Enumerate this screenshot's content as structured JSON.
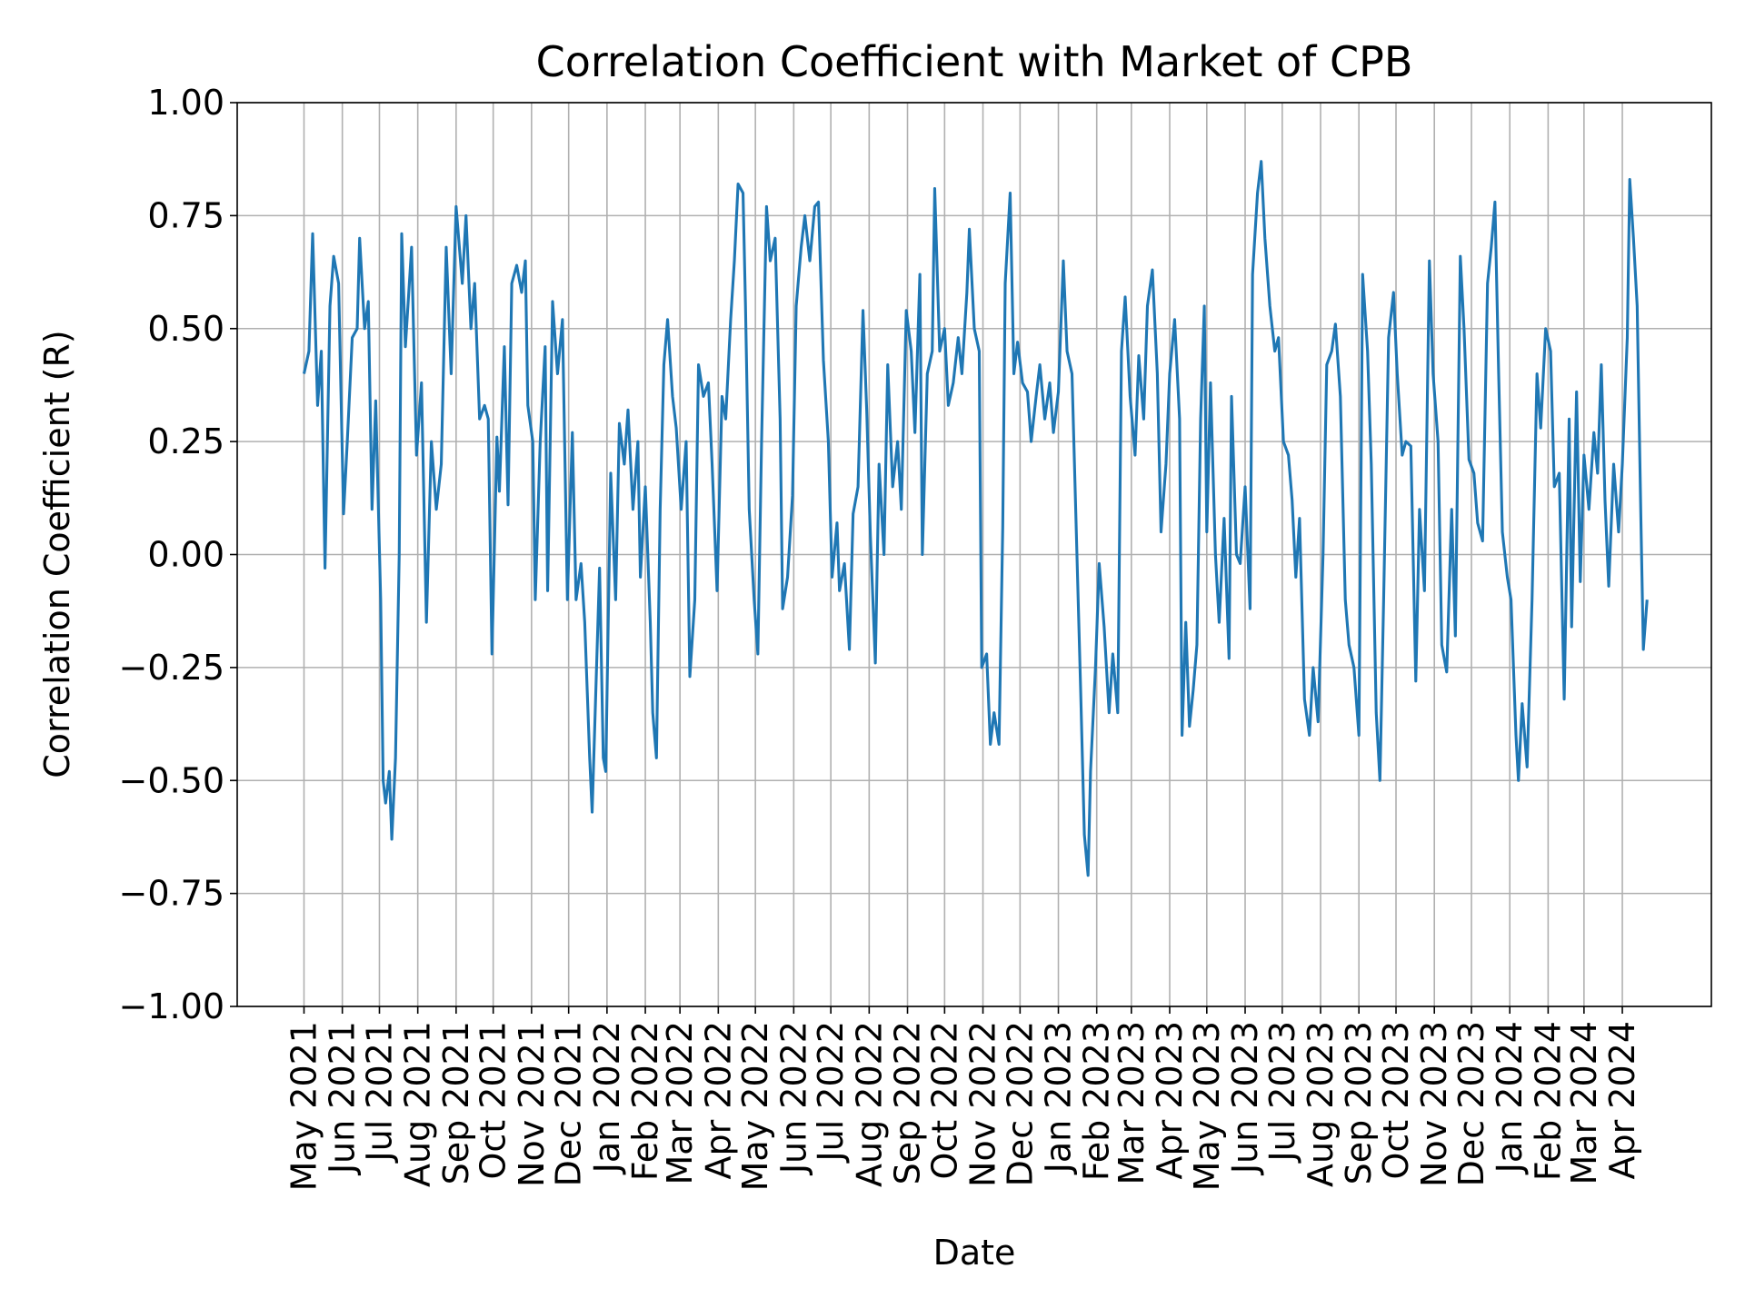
{
  "chart_data": {
    "type": "line",
    "title": "Correlation Coefficient with Market of CPB",
    "xlabel": "Date",
    "ylabel": "Correlation Coefficient (R)",
    "color": "#1f77b4",
    "grid": true,
    "xlim": [
      "2021-03-08",
      "2024-06-12"
    ],
    "ylim": [
      -1,
      1
    ],
    "yticks": [
      {
        "value": -1,
        "label": "−1.00"
      },
      {
        "value": -0.75,
        "label": "−0.75"
      },
      {
        "value": -0.5,
        "label": "−0.50"
      },
      {
        "value": -0.25,
        "label": "−0.25"
      },
      {
        "value": 0,
        "label": "0.00"
      },
      0.25,
      {
        "value": 0.5,
        "label": "0.50"
      },
      0.75,
      {
        "value": 1,
        "label": "1.00"
      }
    ],
    "xticks": [
      {
        "value": "2021-05-01",
        "label": "May 2021"
      },
      {
        "value": "2021-06-01",
        "label": "Jun 2021"
      },
      {
        "value": "2021-07-01",
        "label": "Jul 2021"
      },
      {
        "value": "2021-08-01",
        "label": "Aug 2021"
      },
      {
        "value": "2021-09-01",
        "label": "Sep 2021"
      },
      {
        "value": "2021-10-01",
        "label": "Oct 2021"
      },
      {
        "value": "2021-11-01",
        "label": "Nov 2021"
      },
      {
        "value": "2021-12-01",
        "label": "Dec 2021"
      },
      {
        "value": "2022-01-01",
        "label": "Jan 2022"
      },
      {
        "value": "2022-02-01",
        "label": "Feb 2022"
      },
      {
        "value": "2022-03-01",
        "label": "Mar 2022"
      },
      {
        "value": "2022-04-01",
        "label": "Apr 2022"
      },
      {
        "value": "2022-05-01",
        "label": "May 2022"
      },
      {
        "value": "2022-06-01",
        "label": "Jun 2022"
      },
      {
        "value": "2022-07-01",
        "label": "Jul 2022"
      },
      {
        "value": "2022-08-01",
        "label": "Aug 2022"
      },
      {
        "value": "2022-09-01",
        "label": "Sep 2022"
      },
      {
        "value": "2022-10-01",
        "label": "Oct 2022"
      },
      {
        "value": "2022-11-01",
        "label": "Nov 2022"
      },
      {
        "value": "2022-12-01",
        "label": "Dec 2022"
      },
      {
        "value": "2023-01-01",
        "label": "Jan 2023"
      },
      {
        "value": "2023-02-01",
        "label": "Feb 2023"
      },
      {
        "value": "2023-03-01",
        "label": "Mar 2023"
      },
      {
        "value": "2023-04-01",
        "label": "Apr 2023"
      },
      {
        "value": "2023-05-01",
        "label": "May 2023"
      },
      {
        "value": "2023-06-01",
        "label": "Jun 2023"
      },
      {
        "value": "2023-07-01",
        "label": "Jul 2023"
      },
      {
        "value": "2023-08-01",
        "label": "Aug 2023"
      },
      {
        "value": "2023-09-01",
        "label": "Sep 2023"
      },
      {
        "value": "2023-10-01",
        "label": "Oct 2023"
      },
      {
        "value": "2023-11-01",
        "label": "Nov 2023"
      },
      {
        "value": "2023-12-01",
        "label": "Dec 2023"
      },
      {
        "value": "2024-01-01",
        "label": "Jan 2024"
      },
      {
        "value": "2024-02-01",
        "label": "Feb 2024"
      },
      {
        "value": "2024-03-01",
        "label": "Mar 2024"
      },
      {
        "value": "2024-04-01",
        "label": "Apr 2024"
      }
    ],
    "x": [
      "2021-05-01",
      "2021-05-05",
      "2021-05-08",
      "2021-05-12",
      "2021-05-15",
      "2021-05-18",
      "2021-05-22",
      "2021-05-25",
      "2021-05-29",
      "2021-06-02",
      "2021-06-05",
      "2021-06-09",
      "2021-06-13",
      "2021-06-15",
      "2021-06-19",
      "2021-06-22",
      "2021-06-25",
      "2021-06-28",
      "2021-07-02",
      "2021-07-04",
      "2021-07-06",
      "2021-07-09",
      "2021-07-11",
      "2021-07-14",
      "2021-07-17",
      "2021-07-19",
      "2021-07-22",
      "2021-07-27",
      "2021-07-31",
      "2021-08-04",
      "2021-08-08",
      "2021-08-12",
      "2021-08-16",
      "2021-08-20",
      "2021-08-24",
      "2021-08-28",
      "2021-09-01",
      "2021-09-06",
      "2021-09-09",
      "2021-09-13",
      "2021-09-16",
      "2021-09-20",
      "2021-09-24",
      "2021-09-27",
      "2021-09-30",
      "2021-10-04",
      "2021-10-06",
      "2021-10-10",
      "2021-10-13",
      "2021-10-16",
      "2021-10-20",
      "2021-10-24",
      "2021-10-27",
      "2021-10-29",
      "2021-11-02",
      "2021-11-04",
      "2021-11-08",
      "2021-11-12",
      "2021-11-14",
      "2021-11-18",
      "2021-11-22",
      "2021-11-26",
      "2021-11-30",
      "2021-12-04",
      "2021-12-07",
      "2021-12-11",
      "2021-12-14",
      "2021-12-18",
      "2021-12-20",
      "2021-12-23",
      "2021-12-26",
      "2021-12-29",
      "2021-12-31",
      "2022-01-04",
      "2022-01-08",
      "2022-01-11",
      "2022-01-15",
      "2022-01-18",
      "2022-01-22",
      "2022-01-26",
      "2022-01-28",
      "2022-02-01",
      "2022-02-05",
      "2022-02-07",
      "2022-02-10",
      "2022-02-13",
      "2022-02-16",
      "2022-02-19",
      "2022-02-23",
      "2022-02-26",
      "2022-03-02",
      "2022-03-06",
      "2022-03-09",
      "2022-03-13",
      "2022-03-16",
      "2022-03-20",
      "2022-03-24",
      "2022-03-27",
      "2022-03-31",
      "2022-04-04",
      "2022-04-07",
      "2022-04-11",
      "2022-04-14",
      "2022-04-17",
      "2022-04-21",
      "2022-04-23",
      "2022-04-26",
      "2022-04-30",
      "2022-05-03",
      "2022-05-06",
      "2022-05-10",
      "2022-05-13",
      "2022-05-17",
      "2022-05-21",
      "2022-05-23",
      "2022-05-27",
      "2022-05-31",
      "2022-06-03",
      "2022-06-07",
      "2022-06-10",
      "2022-06-14",
      "2022-06-18",
      "2022-06-21",
      "2022-06-25",
      "2022-06-29",
      "2022-07-02",
      "2022-07-06",
      "2022-07-08",
      "2022-07-12",
      "2022-07-16",
      "2022-07-19",
      "2022-07-23",
      "2022-07-27",
      "2022-07-30",
      "2022-08-02",
      "2022-08-06",
      "2022-08-09",
      "2022-08-13",
      "2022-08-16",
      "2022-08-20",
      "2022-08-24",
      "2022-08-27",
      "2022-08-31",
      "2022-09-04",
      "2022-09-07",
      "2022-09-11",
      "2022-09-13",
      "2022-09-17",
      "2022-09-21",
      "2022-09-23",
      "2022-09-27",
      "2022-10-01",
      "2022-10-04",
      "2022-10-08",
      "2022-10-12",
      "2022-10-15",
      "2022-10-19",
      "2022-10-21",
      "2022-10-25",
      "2022-10-29",
      "2022-10-31",
      "2022-11-04",
      "2022-11-07",
      "2022-11-10",
      "2022-11-14",
      "2022-11-17",
      "2022-11-19",
      "2022-11-23",
      "2022-11-26",
      "2022-11-29",
      "2022-12-03",
      "2022-12-07",
      "2022-12-10",
      "2022-12-14",
      "2022-12-17",
      "2022-12-21",
      "2022-12-25",
      "2022-12-28",
      "2023-01-01",
      "2023-01-05",
      "2023-01-08",
      "2023-01-12",
      "2023-01-15",
      "2023-01-19",
      "2023-01-22",
      "2023-01-25",
      "2023-01-27",
      "2023-01-31",
      "2023-02-03",
      "2023-02-07",
      "2023-02-11",
      "2023-02-14",
      "2023-02-18",
      "2023-02-21",
      "2023-02-24",
      "2023-02-28",
      "2023-03-04",
      "2023-03-07",
      "2023-03-11",
      "2023-03-14",
      "2023-03-18",
      "2023-03-22",
      "2023-03-25",
      "2023-03-29",
      "2023-04-01",
      "2023-04-05",
      "2023-04-09",
      "2023-04-11",
      "2023-04-14",
      "2023-04-17",
      "2023-04-20",
      "2023-04-23",
      "2023-04-26",
      "2023-04-29",
      "2023-05-01",
      "2023-05-04",
      "2023-05-08",
      "2023-05-11",
      "2023-05-15",
      "2023-05-19",
      "2023-05-21",
      "2023-05-25",
      "2023-05-28",
      "2023-06-01",
      "2023-06-05",
      "2023-06-07",
      "2023-06-11",
      "2023-06-14",
      "2023-06-17",
      "2023-06-21",
      "2023-06-25",
      "2023-06-28",
      "2023-07-02",
      "2023-07-06",
      "2023-07-09",
      "2023-07-12",
      "2023-07-15",
      "2023-07-19",
      "2023-07-23",
      "2023-07-26",
      "2023-07-30",
      "2023-08-03",
      "2023-08-06",
      "2023-08-10",
      "2023-08-13",
      "2023-08-17",
      "2023-08-21",
      "2023-08-24",
      "2023-08-28",
      "2023-09-01",
      "2023-09-04",
      "2023-09-08",
      "2023-09-11",
      "2023-09-15",
      "2023-09-18",
      "2023-09-21",
      "2023-09-25",
      "2023-09-29",
      "2023-10-02",
      "2023-10-06",
      "2023-10-09",
      "2023-10-13",
      "2023-10-17",
      "2023-10-20",
      "2023-10-24",
      "2023-10-28",
      "2023-10-31",
      "2023-11-04",
      "2023-11-07",
      "2023-11-11",
      "2023-11-15",
      "2023-11-18",
      "2023-11-22",
      "2023-11-25",
      "2023-11-29",
      "2023-12-03",
      "2023-12-06",
      "2023-12-10",
      "2023-12-14",
      "2023-12-17",
      "2023-12-20",
      "2023-12-23",
      "2023-12-26",
      "2023-12-30",
      "2024-01-02",
      "2024-01-06",
      "2024-01-08",
      "2024-01-11",
      "2024-01-15",
      "2024-01-19",
      "2024-01-23",
      "2024-01-26",
      "2024-01-30",
      "2024-02-03",
      "2024-02-06",
      "2024-02-10",
      "2024-02-14",
      "2024-02-18",
      "2024-02-20",
      "2024-02-24",
      "2024-02-27",
      "2024-03-01",
      "2024-03-05",
      "2024-03-09",
      "2024-03-12",
      "2024-03-15",
      "2024-03-18",
      "2024-03-21",
      "2024-03-25",
      "2024-03-29",
      "2024-04-01",
      "2024-04-05",
      "2024-04-07",
      "2024-04-10",
      "2024-04-13",
      "2024-04-16",
      "2024-04-18",
      "2024-04-21"
    ],
    "values": [
      0.4,
      0.45,
      0.71,
      0.33,
      0.45,
      -0.03,
      0.55,
      0.66,
      0.6,
      0.09,
      0.25,
      0.48,
      0.5,
      0.7,
      0.5,
      0.56,
      0.1,
      0.34,
      -0.1,
      -0.5,
      -0.55,
      -0.48,
      -0.63,
      -0.45,
      0.0,
      0.71,
      0.46,
      0.68,
      0.22,
      0.38,
      -0.15,
      0.25,
      0.1,
      0.2,
      0.68,
      0.4,
      0.77,
      0.6,
      0.75,
      0.5,
      0.6,
      0.3,
      0.33,
      0.3,
      -0.22,
      0.26,
      0.14,
      0.46,
      0.11,
      0.6,
      0.64,
      0.58,
      0.65,
      0.33,
      0.25,
      -0.1,
      0.25,
      0.46,
      -0.08,
      0.56,
      0.4,
      0.52,
      -0.1,
      0.27,
      -0.1,
      -0.02,
      -0.15,
      -0.45,
      -0.57,
      -0.3,
      -0.03,
      -0.45,
      -0.48,
      0.18,
      -0.1,
      0.29,
      0.2,
      0.32,
      0.1,
      0.25,
      -0.05,
      0.15,
      -0.15,
      -0.35,
      -0.45,
      0.1,
      0.42,
      0.52,
      0.35,
      0.28,
      0.1,
      0.25,
      -0.27,
      -0.1,
      0.42,
      0.35,
      0.38,
      0.2,
      -0.08,
      0.35,
      0.3,
      0.52,
      0.65,
      0.82,
      0.8,
      0.55,
      0.1,
      -0.1,
      -0.22,
      0.25,
      0.77,
      0.65,
      0.7,
      0.3,
      -0.12,
      -0.05,
      0.13,
      0.55,
      0.68,
      0.75,
      0.65,
      0.77,
      0.78,
      0.43,
      0.25,
      -0.05,
      0.07,
      -0.08,
      -0.02,
      -0.21,
      0.09,
      0.15,
      0.54,
      0.32,
      0.04,
      -0.24,
      0.2,
      0.0,
      0.42,
      0.15,
      0.25,
      0.1,
      0.54,
      0.45,
      0.27,
      0.62,
      0.0,
      0.4,
      0.45,
      0.81,
      0.45,
      0.5,
      0.33,
      0.38,
      0.48,
      0.4,
      0.58,
      0.72,
      0.5,
      0.45,
      -0.25,
      -0.22,
      -0.42,
      -0.35,
      -0.42,
      0.06,
      0.6,
      0.8,
      0.4,
      0.47,
      0.38,
      0.36,
      0.25,
      0.35,
      0.42,
      0.3,
      0.38,
      0.27,
      0.36,
      0.65,
      0.45,
      0.4,
      0.1,
      -0.3,
      -0.62,
      -0.71,
      -0.48,
      -0.25,
      -0.02,
      -0.16,
      -0.35,
      -0.22,
      -0.35,
      0.45,
      0.57,
      0.35,
      0.22,
      0.44,
      0.3,
      0.55,
      0.63,
      0.4,
      0.05,
      0.2,
      0.4,
      0.52,
      0.3,
      -0.4,
      -0.15,
      -0.38,
      -0.3,
      -0.2,
      0.3,
      0.55,
      0.05,
      0.38,
      0.0,
      -0.15,
      0.08,
      -0.23,
      0.35,
      0.0,
      -0.02,
      0.15,
      -0.12,
      0.62,
      0.8,
      0.87,
      0.7,
      0.55,
      0.45,
      0.48,
      0.25,
      0.22,
      0.12,
      -0.05,
      0.08,
      -0.32,
      -0.4,
      -0.25,
      -0.37,
      0.0,
      0.42,
      0.45,
      0.51,
      0.35,
      -0.1,
      -0.2,
      -0.25,
      -0.4,
      0.62,
      0.45,
      0.2,
      -0.35,
      -0.5,
      -0.1,
      0.48,
      0.58,
      0.4,
      0.22,
      0.25,
      0.24,
      -0.28,
      0.1,
      -0.08,
      0.65,
      0.4,
      0.25,
      -0.2,
      -0.26,
      0.1,
      -0.18,
      0.66,
      0.5,
      0.21,
      0.18,
      0.07,
      0.03,
      0.6,
      0.68,
      0.78,
      0.4,
      0.05,
      -0.05,
      -0.1,
      -0.4,
      -0.5,
      -0.33,
      -0.47,
      -0.1,
      0.4,
      0.28,
      0.5,
      0.45,
      0.15,
      0.18,
      -0.32,
      0.3,
      -0.16,
      0.36,
      -0.06,
      0.22,
      0.1,
      0.27,
      0.18,
      0.42,
      0.12,
      -0.07,
      0.2,
      0.05,
      0.2,
      0.48,
      0.83,
      0.7,
      0.55,
      0.08,
      -0.21,
      -0.1
    ]
  }
}
